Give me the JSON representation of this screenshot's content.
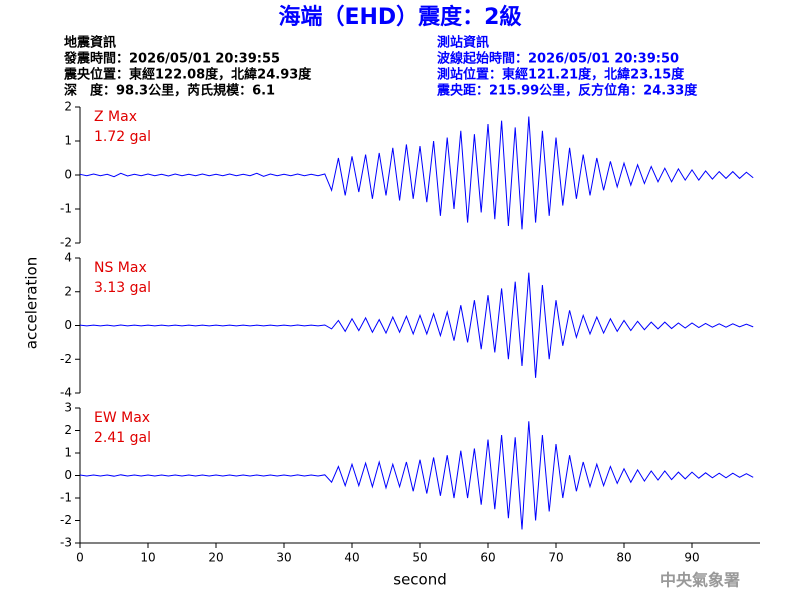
{
  "header": {
    "title": "海端（EHD）震度：2級",
    "left": [
      "地震資訊",
      "發震時間：2026/05/01 20:39:55",
      "震央位置：東經122.08度，北緯24.93度",
      "深　度：98.3公里，芮氏規模：6.1"
    ],
    "right": [
      "測站資訊",
      "波線起始時間：2026/05/01 20:39:50",
      "測站位置：東經121.21度，北緯23.15度",
      "震央距：215.99公里，反方位角：24.33度"
    ]
  },
  "footer": "中央氣象署",
  "chart_data": [
    {
      "type": "line",
      "annotation": [
        "Z Max",
        "1.72 gal"
      ],
      "ylabel": "acceleration",
      "ylim": [
        -2,
        2
      ],
      "yticks": [
        2,
        1,
        0,
        -1,
        -2
      ],
      "xlim": [
        0,
        100
      ],
      "x": [
        0,
        1,
        2,
        3,
        4,
        5,
        6,
        7,
        8,
        9,
        10,
        11,
        12,
        13,
        14,
        15,
        16,
        17,
        18,
        19,
        20,
        21,
        22,
        23,
        24,
        25,
        26,
        27,
        28,
        29,
        30,
        31,
        32,
        33,
        34,
        35,
        36,
        37,
        38,
        39,
        40,
        41,
        42,
        43,
        44,
        45,
        46,
        47,
        48,
        49,
        50,
        51,
        52,
        53,
        54,
        55,
        56,
        57,
        58,
        59,
        60,
        61,
        62,
        63,
        64,
        65,
        66,
        67,
        68,
        69,
        70,
        71,
        72,
        73,
        74,
        75,
        76,
        77,
        78,
        79,
        80,
        81,
        82,
        83,
        84,
        85,
        86,
        87,
        88,
        89,
        90,
        91,
        92,
        93,
        94,
        95,
        96,
        97,
        98,
        99
      ],
      "series": [
        {
          "color": "#0000ff",
          "values": [
            0.02,
            -0.02,
            0.03,
            -0.02,
            0.02,
            -0.05,
            0.05,
            -0.03,
            0.02,
            -0.02,
            0.03,
            -0.02,
            0.02,
            -0.03,
            0.03,
            -0.02,
            0.02,
            -0.02,
            0.03,
            -0.02,
            0.02,
            -0.02,
            0.03,
            -0.02,
            0.02,
            -0.02,
            0.05,
            -0.04,
            0.03,
            -0.02,
            0.02,
            -0.02,
            0.03,
            -0.02,
            0.02,
            -0.02,
            0.03,
            -0.45,
            0.5,
            -0.6,
            0.55,
            -0.5,
            0.6,
            -0.7,
            0.65,
            -0.6,
            0.8,
            -0.75,
            0.9,
            -0.7,
            0.85,
            -0.8,
            1.0,
            -1.2,
            1.1,
            -1.0,
            1.3,
            -1.4,
            1.2,
            -1.1,
            1.5,
            -1.3,
            1.6,
            -1.5,
            1.4,
            -1.6,
            1.72,
            -1.4,
            1.3,
            -1.2,
            1.1,
            -0.9,
            0.8,
            -0.7,
            0.6,
            -0.6,
            0.5,
            -0.45,
            0.4,
            -0.35,
            0.35,
            -0.3,
            0.3,
            -0.25,
            0.25,
            -0.2,
            0.2,
            -0.2,
            0.18,
            -0.15,
            0.15,
            -0.15,
            0.12,
            -0.12,
            0.1,
            -0.1,
            0.1,
            -0.1,
            0.08,
            -0.08
          ]
        }
      ]
    },
    {
      "type": "line",
      "annotation": [
        "NS Max",
        "3.13 gal"
      ],
      "ylim": [
        -4,
        4
      ],
      "yticks": [
        4,
        2,
        0,
        -2,
        -4
      ],
      "xlim": [
        0,
        100
      ],
      "x": [
        0,
        1,
        2,
        3,
        4,
        5,
        6,
        7,
        8,
        9,
        10,
        11,
        12,
        13,
        14,
        15,
        16,
        17,
        18,
        19,
        20,
        21,
        22,
        23,
        24,
        25,
        26,
        27,
        28,
        29,
        30,
        31,
        32,
        33,
        34,
        35,
        36,
        37,
        38,
        39,
        40,
        41,
        42,
        43,
        44,
        45,
        46,
        47,
        48,
        49,
        50,
        51,
        52,
        53,
        54,
        55,
        56,
        57,
        58,
        59,
        60,
        61,
        62,
        63,
        64,
        65,
        66,
        67,
        68,
        69,
        70,
        71,
        72,
        73,
        74,
        75,
        76,
        77,
        78,
        79,
        80,
        81,
        82,
        83,
        84,
        85,
        86,
        87,
        88,
        89,
        90,
        91,
        92,
        93,
        94,
        95,
        96,
        97,
        98,
        99
      ],
      "series": [
        {
          "color": "#0000ff",
          "values": [
            0.02,
            -0.02,
            0.02,
            -0.02,
            0.02,
            -0.03,
            0.03,
            -0.02,
            0.02,
            -0.02,
            0.02,
            -0.02,
            0.02,
            -0.02,
            0.02,
            -0.02,
            0.02,
            -0.02,
            0.02,
            -0.02,
            0.02,
            -0.02,
            0.02,
            -0.02,
            0.02,
            -0.02,
            0.02,
            -0.02,
            0.02,
            -0.02,
            0.02,
            -0.02,
            0.03,
            -0.02,
            0.02,
            -0.02,
            0.03,
            -0.2,
            0.3,
            -0.35,
            0.4,
            -0.3,
            0.45,
            -0.4,
            0.35,
            -0.45,
            0.5,
            -0.4,
            0.55,
            -0.5,
            0.6,
            -0.5,
            0.7,
            -0.6,
            0.8,
            -0.9,
            1.2,
            -1.0,
            1.5,
            -1.4,
            1.8,
            -1.6,
            2.2,
            -2.0,
            2.6,
            -2.4,
            3.13,
            -3.1,
            2.4,
            -2.0,
            1.5,
            -1.2,
            0.9,
            -0.7,
            0.6,
            -0.5,
            0.5,
            -0.45,
            0.4,
            -0.35,
            0.3,
            -0.3,
            0.25,
            -0.25,
            0.2,
            -0.2,
            0.2,
            -0.18,
            0.15,
            -0.15,
            0.15,
            -0.12,
            0.12,
            -0.1,
            0.1,
            -0.1,
            0.1,
            -0.08,
            0.08,
            -0.08
          ]
        }
      ]
    },
    {
      "type": "line",
      "annotation": [
        "EW Max",
        "2.41 gal"
      ],
      "xlabel": "second",
      "ylim": [
        -3,
        3
      ],
      "yticks": [
        3,
        2,
        1,
        0,
        -1,
        -2,
        -3
      ],
      "xlim": [
        0,
        100
      ],
      "xticks": [
        0,
        10,
        20,
        30,
        40,
        50,
        60,
        70,
        80,
        90
      ],
      "x": [
        0,
        1,
        2,
        3,
        4,
        5,
        6,
        7,
        8,
        9,
        10,
        11,
        12,
        13,
        14,
        15,
        16,
        17,
        18,
        19,
        20,
        21,
        22,
        23,
        24,
        25,
        26,
        27,
        28,
        29,
        30,
        31,
        32,
        33,
        34,
        35,
        36,
        37,
        38,
        39,
        40,
        41,
        42,
        43,
        44,
        45,
        46,
        47,
        48,
        49,
        50,
        51,
        52,
        53,
        54,
        55,
        56,
        57,
        58,
        59,
        60,
        61,
        62,
        63,
        64,
        65,
        66,
        67,
        68,
        69,
        70,
        71,
        72,
        73,
        74,
        75,
        76,
        77,
        78,
        79,
        80,
        81,
        82,
        83,
        84,
        85,
        86,
        87,
        88,
        89,
        90,
        91,
        92,
        93,
        94,
        95,
        96,
        97,
        98,
        99
      ],
      "series": [
        {
          "color": "#0000ff",
          "values": [
            0.02,
            -0.02,
            0.02,
            -0.02,
            0.02,
            -0.03,
            0.03,
            -0.02,
            0.02,
            -0.02,
            0.02,
            -0.02,
            0.02,
            -0.02,
            0.02,
            -0.02,
            0.02,
            -0.02,
            0.02,
            -0.02,
            0.02,
            -0.02,
            0.02,
            -0.02,
            0.02,
            -0.02,
            0.02,
            -0.02,
            0.02,
            -0.02,
            0.02,
            -0.02,
            0.03,
            -0.02,
            0.02,
            -0.02,
            0.03,
            -0.3,
            0.4,
            -0.45,
            0.5,
            -0.45,
            0.55,
            -0.5,
            0.6,
            -0.55,
            0.5,
            -0.5,
            0.6,
            -0.7,
            0.7,
            -0.8,
            0.8,
            -0.9,
            0.9,
            -1.0,
            1.1,
            -1.0,
            1.2,
            -1.3,
            1.6,
            -1.5,
            1.8,
            -1.9,
            1.7,
            -2.4,
            2.41,
            -2.0,
            1.8,
            -1.6,
            1.4,
            -1.0,
            0.9,
            -0.7,
            0.6,
            -0.5,
            0.5,
            -0.45,
            0.4,
            -0.35,
            0.3,
            -0.3,
            0.25,
            -0.25,
            0.2,
            -0.2,
            0.2,
            -0.18,
            0.15,
            -0.15,
            0.15,
            -0.12,
            0.12,
            -0.1,
            0.1,
            -0.1,
            0.1,
            -0.08,
            0.08,
            -0.08
          ]
        }
      ]
    }
  ]
}
